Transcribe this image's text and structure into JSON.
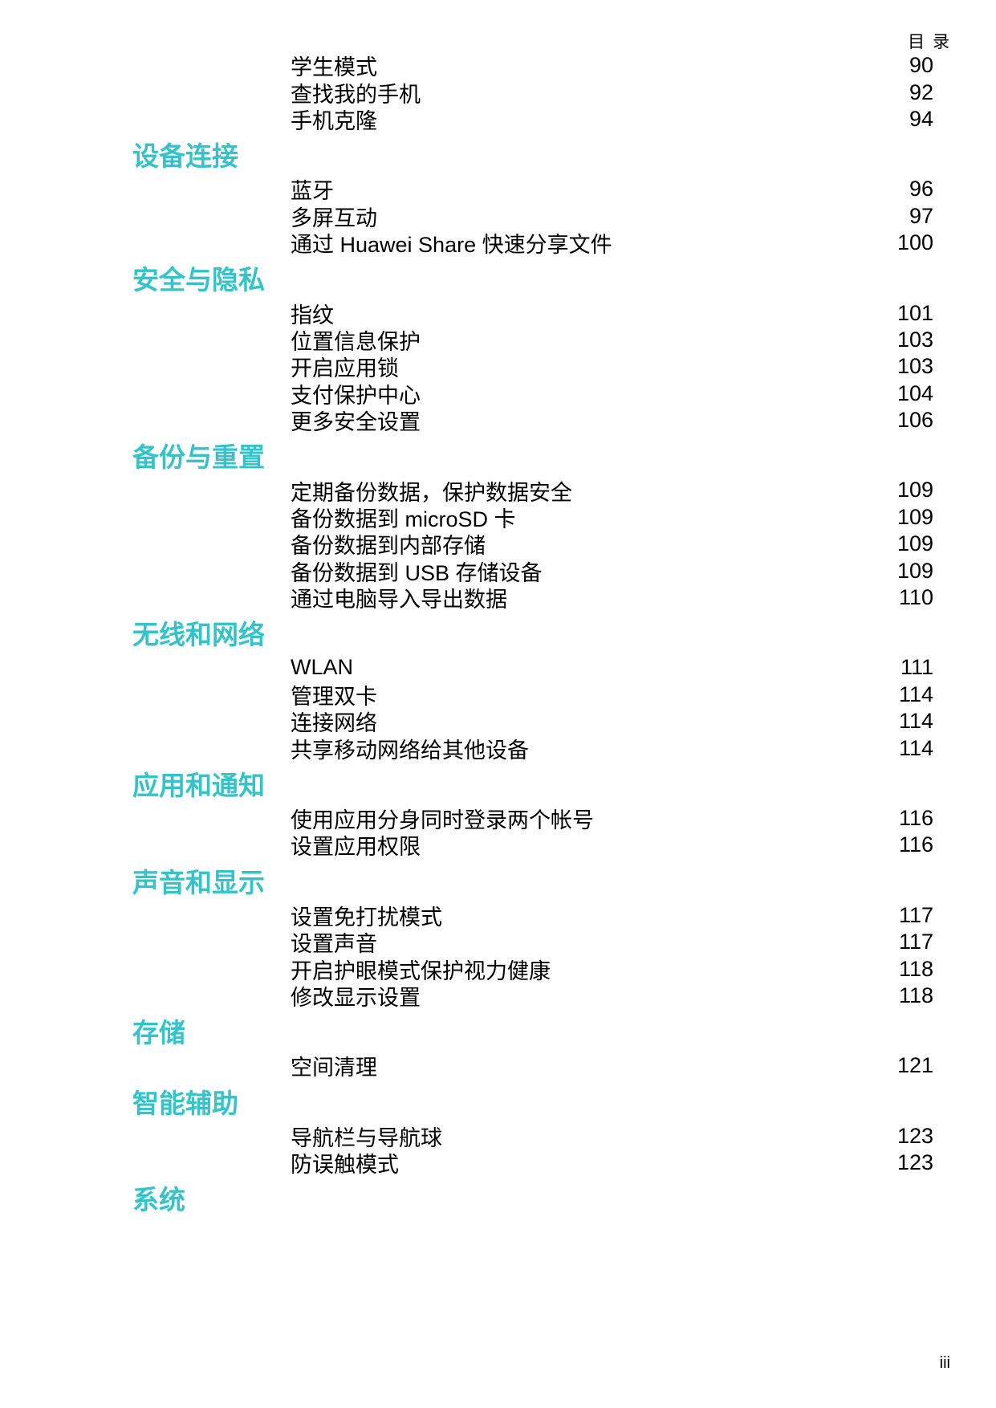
{
  "page": {
    "header": "目 录",
    "footer": "iii",
    "accent_color": "#33C3C9",
    "text_color": "#000000",
    "background_color": "#FFFFFF"
  },
  "toc": {
    "sections": [
      {
        "title": "",
        "entries": [
          {
            "label": "学生模式",
            "page": "90"
          },
          {
            "label": "查找我的手机",
            "page": "92"
          },
          {
            "label": "手机克隆",
            "page": "94"
          }
        ]
      },
      {
        "title": "设备连接",
        "entries": [
          {
            "label": "蓝牙",
            "page": "96"
          },
          {
            "label": "多屏互动",
            "page": "97"
          },
          {
            "label": "通过 Huawei Share 快速分享文件",
            "page": "100"
          }
        ]
      },
      {
        "title": "安全与隐私",
        "entries": [
          {
            "label": "指纹",
            "page": "101"
          },
          {
            "label": "位置信息保护",
            "page": "103"
          },
          {
            "label": "开启应用锁",
            "page": "103"
          },
          {
            "label": "支付保护中心",
            "page": "104"
          },
          {
            "label": "更多安全设置",
            "page": "106"
          }
        ]
      },
      {
        "title": "备份与重置",
        "entries": [
          {
            "label": "定期备份数据，保护数据安全",
            "page": "109"
          },
          {
            "label": "备份数据到 microSD 卡",
            "page": "109"
          },
          {
            "label": "备份数据到内部存储",
            "page": "109"
          },
          {
            "label": "备份数据到 USB 存储设备",
            "page": "109"
          },
          {
            "label": "通过电脑导入导出数据",
            "page": "110"
          }
        ]
      },
      {
        "title": "无线和网络",
        "entries": [
          {
            "label": "WLAN",
            "page": "111"
          },
          {
            "label": "管理双卡",
            "page": "114"
          },
          {
            "label": "连接网络",
            "page": "114"
          },
          {
            "label": "共享移动网络给其他设备",
            "page": "114"
          }
        ]
      },
      {
        "title": "应用和通知",
        "entries": [
          {
            "label": "使用应用分身同时登录两个帐号",
            "page": "116"
          },
          {
            "label": "设置应用权限",
            "page": "116"
          }
        ]
      },
      {
        "title": "声音和显示",
        "entries": [
          {
            "label": "设置免打扰模式",
            "page": "117"
          },
          {
            "label": "设置声音",
            "page": "117"
          },
          {
            "label": "开启护眼模式保护视力健康",
            "page": "118"
          },
          {
            "label": "修改显示设置",
            "page": "118"
          }
        ]
      },
      {
        "title": "存储",
        "entries": [
          {
            "label": "空间清理",
            "page": "121"
          }
        ]
      },
      {
        "title": "智能辅助",
        "entries": [
          {
            "label": "导航栏与导航球",
            "page": "123"
          },
          {
            "label": "防误触模式",
            "page": "123"
          }
        ]
      },
      {
        "title": "系统",
        "entries": []
      }
    ]
  }
}
